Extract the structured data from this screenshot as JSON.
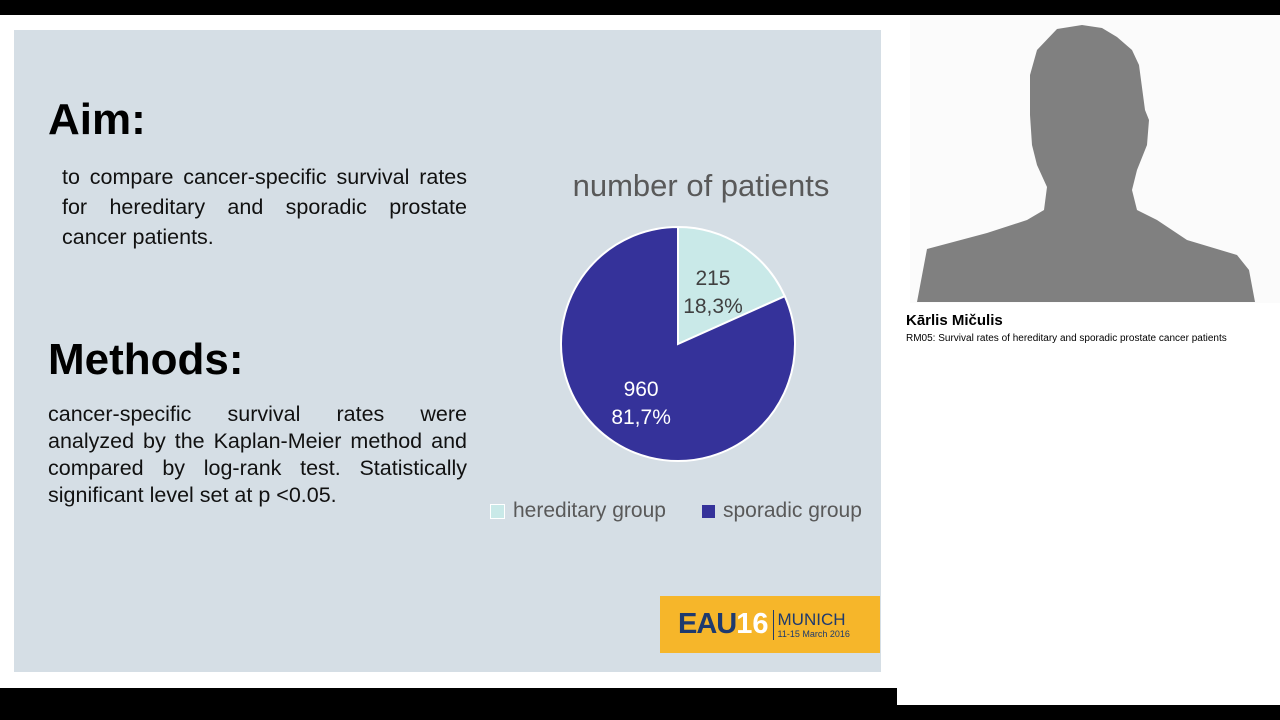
{
  "slide": {
    "aim_heading": "Aim:",
    "aim_text": "to compare cancer-specific survival rates for hereditary and sporadic prostate cancer patients.",
    "methods_heading": "Methods:",
    "methods_text": "cancer-specific survival rates were analyzed by the Kaplan-Meier method and compared by log-rank test. Statistically significant level set at p <0.05.",
    "logo": {
      "eau": "EAU",
      "year": "16",
      "city": "MUNICH",
      "dates": "11-15 March 2016"
    }
  },
  "chart_data": {
    "type": "pie",
    "title": "number of patients",
    "categories": [
      "hereditary group",
      "sporadic group"
    ],
    "values": [
      215,
      960
    ],
    "percent_labels": [
      "18,3%",
      "81,7%"
    ],
    "colors": [
      "#c9e9e8",
      "#35329a"
    ],
    "legend": "bottom"
  },
  "presenter": {
    "name": "Kārlis Mičulis",
    "session": "RM05: Survival rates of hereditary and sporadic prostate cancer patients"
  }
}
